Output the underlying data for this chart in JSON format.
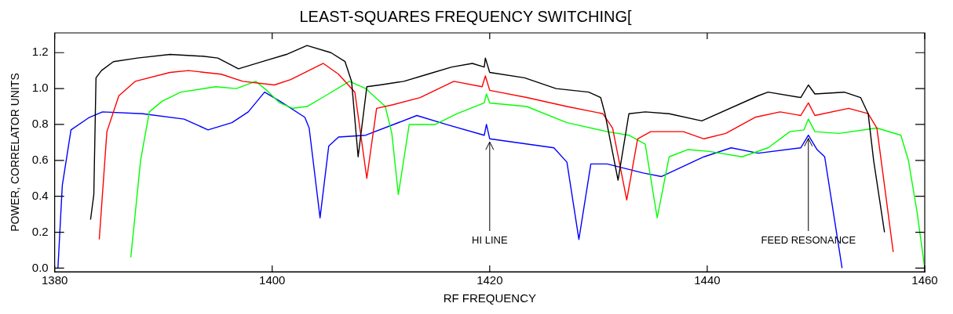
{
  "chart_data": {
    "type": "line",
    "title": "LEAST-SQUARES FREQUENCY SWITCHING[",
    "xlabel": "RF FREQUENCY",
    "ylabel": "POWER, CORRELATOR UNITS",
    "xlim": [
      1380,
      1460
    ],
    "xticks": [
      1380,
      1400,
      1420,
      1440,
      1460
    ],
    "ylim": [
      -0.02,
      1.31
    ],
    "yticks": [
      {
        "value": 0,
        "label": "0.0"
      },
      {
        "value": 0.2,
        "label": "0.2"
      },
      {
        "value": 0.4,
        "label": "0.4"
      },
      {
        "value": 0.6,
        "label": "0.6"
      },
      {
        "value": 0.8,
        "label": "0.8"
      },
      {
        "value": 1,
        "label": "1.0"
      },
      {
        "value": 1.2,
        "label": "1.2"
      }
    ],
    "grid": false,
    "legend": false,
    "marker": "none",
    "line_style": "solid",
    "annotations": [
      {
        "text": "HI LINE",
        "x": 1420.0,
        "y": 0.72
      },
      {
        "text": "FEED RESONANCE",
        "x": 1449.3,
        "y": 0.74
      }
    ],
    "series": [
      {
        "color": "#000000",
        "x": [
          1383.3,
          1383.6,
          1383.8,
          1384.3,
          1385.4,
          1387.6,
          1390.6,
          1393.6,
          1395.0,
          1396.9,
          1399.1,
          1401.3,
          1403.2,
          1405.4,
          1406.7,
          1407.3,
          1407.9,
          1408.7,
          1409.9,
          1412.1,
          1414.3,
          1416.5,
          1418.4,
          1419.5,
          1419.6,
          1420.0,
          1423.2,
          1426.1,
          1429.1,
          1430.2,
          1430.6,
          1431.8,
          1432.8,
          1434.3,
          1436.5,
          1439.5,
          1444.7,
          1445.6,
          1448.6,
          1449.3,
          1449.9,
          1452.6,
          1454.1,
          1454.8,
          1455.3,
          1456.3
        ],
        "values": [
          0.27,
          0.41,
          1.06,
          1.1,
          1.15,
          1.17,
          1.19,
          1.18,
          1.17,
          1.11,
          1.15,
          1.19,
          1.24,
          1.2,
          1.15,
          1.04,
          0.62,
          1.01,
          1.02,
          1.04,
          1.08,
          1.12,
          1.14,
          1.12,
          1.17,
          1.09,
          1.06,
          1.0,
          0.98,
          0.95,
          0.86,
          0.49,
          0.86,
          0.87,
          0.86,
          0.82,
          0.96,
          0.98,
          0.95,
          1.02,
          0.97,
          0.98,
          0.95,
          0.86,
          0.6,
          0.2
        ]
      },
      {
        "color": "#ff0000",
        "x": [
          1384.1,
          1384.8,
          1385.9,
          1387.4,
          1390.6,
          1392.3,
          1395.3,
          1397.3,
          1400.2,
          1401.7,
          1404.7,
          1406.1,
          1407.6,
          1408.7,
          1409.6,
          1411.1,
          1413.6,
          1416.7,
          1419.3,
          1419.6,
          1420.0,
          1423.4,
          1427.1,
          1430.4,
          1431.3,
          1432.6,
          1433.6,
          1434.8,
          1437.8,
          1439.7,
          1441.7,
          1444.4,
          1446.7,
          1448.6,
          1449.3,
          1449.9,
          1453.0,
          1454.8,
          1455.6,
          1456.3,
          1457.1
        ],
        "values": [
          0.16,
          0.76,
          0.96,
          1.04,
          1.09,
          1.1,
          1.08,
          1.04,
          1.02,
          1.05,
          1.14,
          1.08,
          0.98,
          0.5,
          0.89,
          0.91,
          0.95,
          1.04,
          1.01,
          1.07,
          0.99,
          0.95,
          0.9,
          0.86,
          0.78,
          0.38,
          0.72,
          0.76,
          0.76,
          0.72,
          0.75,
          0.84,
          0.87,
          0.85,
          0.92,
          0.85,
          0.89,
          0.86,
          0.78,
          0.46,
          0.09
        ]
      },
      {
        "color": "#00ff00",
        "x": [
          1387.0,
          1387.9,
          1388.7,
          1389.9,
          1391.6,
          1394.8,
          1396.7,
          1398.5,
          1399.5,
          1400.7,
          1401.9,
          1403.2,
          1404.9,
          1407.1,
          1408.6,
          1410.4,
          1411.0,
          1411.6,
          1412.6,
          1415.0,
          1417.0,
          1419.5,
          1419.7,
          1420.0,
          1423.4,
          1427.1,
          1430.8,
          1432.8,
          1434.3,
          1435.4,
          1436.5,
          1438.2,
          1440.2,
          1443.2,
          1445.6,
          1447.6,
          1448.9,
          1449.3,
          1449.9,
          1452.1,
          1455.6,
          1457.8,
          1458.5,
          1459.3,
          1460.0
        ],
        "values": [
          0.06,
          0.6,
          0.87,
          0.93,
          0.98,
          1.01,
          1.0,
          1.04,
          0.99,
          0.92,
          0.89,
          0.9,
          0.96,
          1.04,
          1.0,
          0.9,
          0.75,
          0.41,
          0.8,
          0.8,
          0.86,
          0.92,
          0.97,
          0.92,
          0.9,
          0.81,
          0.76,
          0.74,
          0.69,
          0.28,
          0.62,
          0.66,
          0.65,
          0.62,
          0.67,
          0.76,
          0.77,
          0.83,
          0.76,
          0.75,
          0.78,
          0.74,
          0.6,
          0.31,
          0.0
        ]
      },
      {
        "color": "#0000ff",
        "x": [
          1380.3,
          1380.7,
          1381.5,
          1383.2,
          1384.4,
          1388.1,
          1391.9,
          1394.1,
          1396.3,
          1397.8,
          1399.3,
          1400.7,
          1403.0,
          1403.4,
          1404.4,
          1405.2,
          1406.1,
          1408.6,
          1413.3,
          1416.0,
          1419.5,
          1419.7,
          1420.0,
          1425.9,
          1427.1,
          1428.2,
          1429.3,
          1430.8,
          1434.1,
          1435.8,
          1439.7,
          1442.2,
          1444.7,
          1448.6,
          1449.3,
          1450.1,
          1450.8,
          1451.6,
          1452.4
        ],
        "values": [
          0.0,
          0.46,
          0.77,
          0.84,
          0.87,
          0.86,
          0.83,
          0.77,
          0.81,
          0.87,
          0.98,
          0.93,
          0.84,
          0.78,
          0.28,
          0.68,
          0.73,
          0.74,
          0.85,
          0.8,
          0.74,
          0.8,
          0.72,
          0.67,
          0.59,
          0.16,
          0.58,
          0.58,
          0.53,
          0.51,
          0.62,
          0.67,
          0.64,
          0.67,
          0.74,
          0.66,
          0.62,
          0.31,
          0.0
        ]
      }
    ]
  }
}
